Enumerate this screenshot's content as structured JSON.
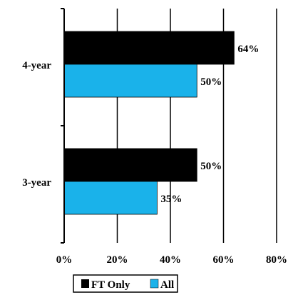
{
  "chart_data": {
    "type": "bar",
    "orientation": "horizontal",
    "categories": [
      "4-year",
      "3-year"
    ],
    "series": [
      {
        "name": "FT Only",
        "color": "#000000",
        "values": [
          64,
          50
        ],
        "labels": [
          "64%",
          "50%"
        ]
      },
      {
        "name": "All",
        "color": "#1ab2ea",
        "values": [
          50,
          35
        ],
        "labels": [
          "50%",
          "35%"
        ]
      }
    ],
    "xlim": [
      0,
      80
    ],
    "x_ticks": [
      0,
      20,
      40,
      60,
      80
    ],
    "x_tick_labels": [
      "0%",
      "20%",
      "40%",
      "60%",
      "80%"
    ],
    "grid": "vertical",
    "legend": "bottom"
  }
}
